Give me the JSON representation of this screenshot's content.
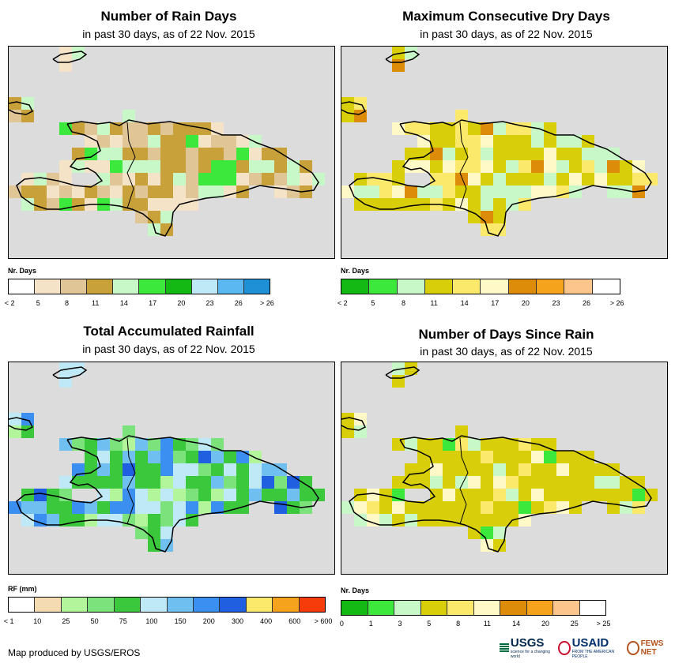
{
  "panels": [
    {
      "id": "rain-days",
      "title": "Number of Rain Days",
      "subtitle": "in past 30 days, as of 22 Nov. 2015",
      "legend": {
        "title": "Nr. Days",
        "colors": [
          "#ffffff",
          "#f5e3c8",
          "#e0c596",
          "#c9a13a",
          "#c8f7c8",
          "#3de83d",
          "#14b914",
          "#bfe9f7",
          "#5cb8f0",
          "#1f8fd6"
        ],
        "labels": [
          "< 2",
          "5",
          "8",
          "11",
          "14",
          "17",
          "20",
          "23",
          "26",
          "> 26"
        ]
      }
    },
    {
      "id": "dry-days",
      "title": "Maximum Consecutive Dry Days",
      "subtitle": "in past 30 days, as of 22 Nov. 2015",
      "legend": {
        "title": "Nr. Days",
        "colors": [
          "#14b914",
          "#3de83d",
          "#c8f7c8",
          "#d8cf0a",
          "#fbe96b",
          "#fff9c8",
          "#dd8c0a",
          "#f5a21c",
          "#fcc58c",
          "#ffffff"
        ],
        "labels": [
          "< 2",
          "5",
          "8",
          "11",
          "14",
          "17",
          "20",
          "23",
          "26",
          "> 26"
        ]
      }
    },
    {
      "id": "rainfall",
      "title": "Total Accumulated Rainfall",
      "subtitle": "in past 30 days, as of 22 Nov. 2015",
      "legend": {
        "title": "RF (mm)",
        "colors": [
          "#ffffff",
          "#f5dbb2",
          "#b2f59a",
          "#7ce27c",
          "#3cc83c",
          "#bfe9f7",
          "#6fbff0",
          "#3b8ff0",
          "#1f5fe0",
          "#fbe96b",
          "#f5a21c",
          "#f53c0a"
        ],
        "labels": [
          "< 1",
          "10",
          "25",
          "50",
          "75",
          "100",
          "150",
          "200",
          "300",
          "400",
          "600",
          "> 600"
        ]
      }
    },
    {
      "id": "days-since",
      "title": "Number of Days Since Rain",
      "subtitle": "in past 30 days, as of 22 Nov. 2015",
      "legend": {
        "title": "Nr. Days",
        "colors": [
          "#14b914",
          "#3de83d",
          "#c8f7c8",
          "#d8cf0a",
          "#fbe96b",
          "#fff9c8",
          "#dd8c0a",
          "#f5a21c",
          "#fcc58c",
          "#ffffff"
        ],
        "labels": [
          "0",
          "1",
          "3",
          "5",
          "8",
          "11",
          "14",
          "20",
          "25",
          "> 25"
        ]
      }
    }
  ],
  "credit": "Map produced by USGS/EROS",
  "logos": {
    "usgs": "USGS",
    "usgs_tagline": "science for a changing world",
    "usaid": "USAID",
    "usaid_tagline": "FROM THE AMERICAN PEOPLE",
    "fews": "FEWS NET"
  }
}
